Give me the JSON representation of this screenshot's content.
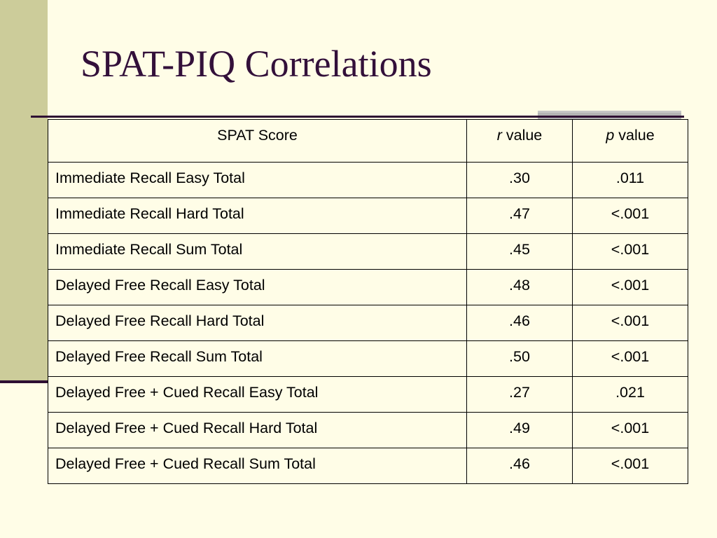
{
  "slide": {
    "title": "SPAT-PIQ Correlations",
    "colors": {
      "background": "#fffde7",
      "left_band": "#cccc9a",
      "title_text": "#33103a",
      "rule": "#2e0f33",
      "accent_bar": "#b4b4b4"
    }
  },
  "table": {
    "headers": {
      "score": "SPAT Score",
      "r_symbol": "r",
      "r_suffix": " value",
      "p_symbol": "p",
      "p_suffix": " value"
    },
    "rows": [
      {
        "score": "Immediate Recall Easy Total",
        "r": ".30",
        "p": ".011"
      },
      {
        "score": "Immediate Recall Hard Total",
        "r": ".47",
        "p": "<.001"
      },
      {
        "score": "Immediate Recall Sum Total",
        "r": ".45",
        "p": "<.001"
      },
      {
        "score": "Delayed Free Recall Easy Total",
        "r": ".48",
        "p": "<.001"
      },
      {
        "score": "Delayed Free Recall Hard Total",
        "r": ".46",
        "p": "<.001"
      },
      {
        "score": "Delayed Free Recall Sum Total",
        "r": ".50",
        "p": "<.001"
      },
      {
        "score": "Delayed Free + Cued Recall Easy Total",
        "r": ".27",
        "p": ".021"
      },
      {
        "score": "Delayed Free + Cued Recall Hard Total",
        "r": ".49",
        "p": "<.001"
      },
      {
        "score": "Delayed Free + Cued Recall Sum Total",
        "r": ".46",
        "p": "<.001"
      }
    ]
  }
}
